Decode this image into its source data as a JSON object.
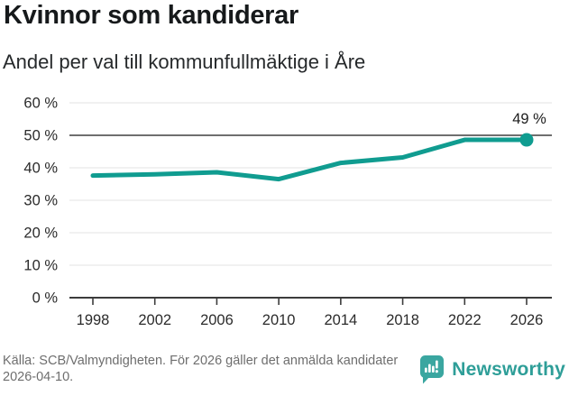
{
  "chart_data": {
    "type": "line",
    "title": "Kvinnor som kandiderar",
    "subtitle": "Andel per val till kommunfullmäktige i Åre",
    "x": [
      "1998",
      "2002",
      "2006",
      "2010",
      "2014",
      "2018",
      "2022",
      "2026"
    ],
    "values": [
      37.6,
      38.0,
      38.6,
      36.5,
      41.5,
      43.2,
      48.6,
      48.6
    ],
    "end_label": "49 %",
    "ylim": [
      0,
      60
    ],
    "y_ticks": [
      0,
      10,
      20,
      30,
      40,
      50,
      60
    ],
    "y_tick_labels": [
      "0 %",
      "10 %",
      "20 %",
      "30 %",
      "40 %",
      "50 %",
      "60 %"
    ],
    "reference_line": 50,
    "grid": true,
    "legend_position": "none",
    "line_color": "#109c90"
  },
  "footer": {
    "source": "Källa: SCB/Valmyndigheten. För 2026 gäller det anmälda kandidater 2026-04-10.",
    "brand": "Newsworthy"
  },
  "colors": {
    "accent_teal": "#109c90",
    "brand_teal": "#2e9e98",
    "icon_teal": "#3aa6a0",
    "reference_line": "#6f6f6f",
    "gridline": "#e3e3e3",
    "axis": "#3c3c3c",
    "tick_label": "#2b2b2b",
    "end_label": "#1c1c1c"
  }
}
